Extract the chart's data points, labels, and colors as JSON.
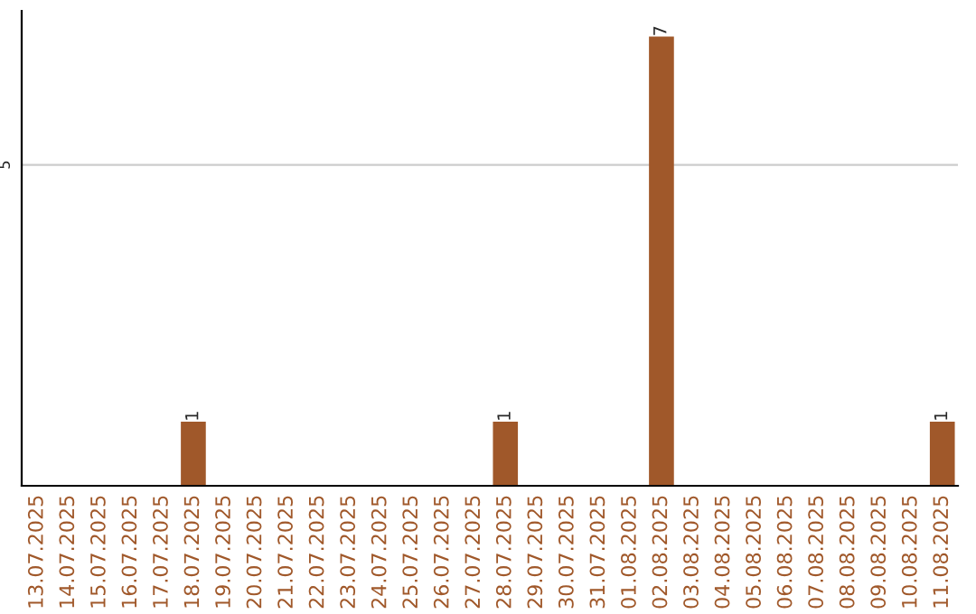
{
  "chart_data": {
    "type": "bar",
    "categories": [
      "13.07.2025",
      "14.07.2025",
      "15.07.2025",
      "16.07.2025",
      "17.07.2025",
      "18.07.2025",
      "19.07.2025",
      "20.07.2025",
      "21.07.2025",
      "22.07.2025",
      "23.07.2025",
      "24.07.2025",
      "25.07.2025",
      "26.07.2025",
      "27.07.2025",
      "28.07.2025",
      "29.07.2025",
      "30.07.2025",
      "31.07.2025",
      "01.08.2025",
      "02.08.2025",
      "03.08.2025",
      "04.08.2025",
      "05.08.2025",
      "06.08.2025",
      "07.08.2025",
      "08.08.2025",
      "09.08.2025",
      "10.08.2025",
      "11.08.2025"
    ],
    "values": [
      0,
      0,
      0,
      0,
      0,
      1,
      0,
      0,
      0,
      0,
      0,
      0,
      0,
      0,
      0,
      1,
      0,
      0,
      0,
      0,
      7,
      0,
      0,
      0,
      0,
      0,
      0,
      0,
      0,
      1
    ],
    "value_labels": [
      null,
      null,
      null,
      null,
      null,
      "1",
      null,
      null,
      null,
      null,
      null,
      null,
      null,
      null,
      null,
      "1",
      null,
      null,
      null,
      null,
      "7",
      null,
      null,
      null,
      null,
      null,
      null,
      null,
      null,
      "1"
    ],
    "color": "#a0582a",
    "ylim": [
      0,
      7.4
    ],
    "yticks": [
      5
    ],
    "grid": "y",
    "legend": false
  }
}
